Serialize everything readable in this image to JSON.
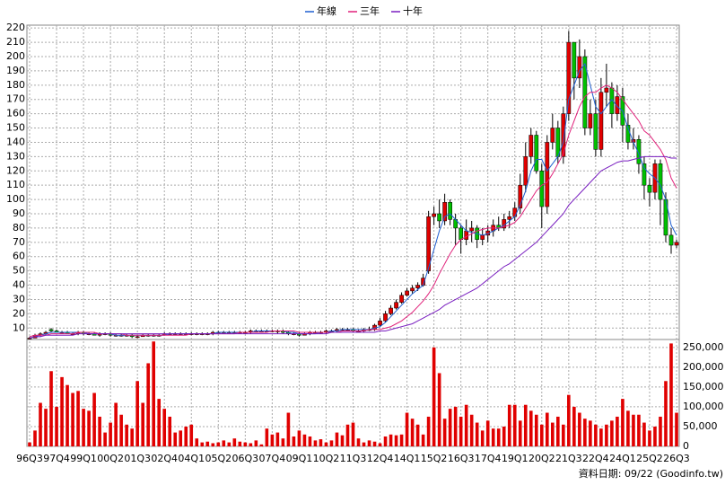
{
  "chart_data": [
    {
      "type": "candlestick",
      "categories": [
        "96Q3",
        null,
        null,
        null,
        null,
        "97Q4",
        null,
        null,
        null,
        null,
        "99Q1",
        null,
        null,
        null,
        null,
        "00Q2",
        null,
        null,
        null,
        null,
        "01Q3",
        null,
        null,
        null,
        null,
        "02Q4",
        null,
        null,
        null,
        null,
        "04Q1",
        null,
        null,
        null,
        null,
        "05Q2",
        null,
        null,
        null,
        null,
        "06Q3",
        null,
        null,
        null,
        null,
        "07Q4",
        null,
        null,
        null,
        null,
        "09Q1",
        null,
        null,
        null,
        null,
        "10Q2",
        null,
        null,
        null,
        null,
        "11Q3",
        null,
        null,
        null,
        null,
        "12Q4",
        null,
        null,
        null,
        null,
        "14Q1",
        null,
        null,
        null,
        null,
        "15Q2",
        null,
        null,
        null,
        null,
        "16Q3",
        null,
        null,
        null,
        null,
        "17Q4",
        null,
        null,
        null,
        null,
        "19Q1",
        null,
        null,
        null,
        null,
        "20Q2",
        null,
        null,
        null,
        null,
        "21Q3",
        null,
        null,
        null,
        null,
        "22Q4",
        null,
        null,
        null,
        null,
        "24Q1",
        null,
        null,
        null,
        null,
        "25Q2",
        null,
        null,
        null,
        null,
        "26Q3"
      ],
      "open": [
        3,
        3,
        5,
        6,
        9,
        8,
        7,
        7,
        6,
        6,
        7,
        6,
        6,
        5,
        6,
        6,
        5,
        5,
        5,
        5,
        4,
        4,
        5,
        5,
        5,
        5,
        6,
        6,
        6,
        6,
        6,
        6,
        6,
        6,
        6,
        7,
        7,
        7,
        7,
        7,
        7,
        7,
        8,
        8,
        8,
        8,
        8,
        8,
        7,
        6,
        6,
        5,
        6,
        7,
        7,
        7,
        8,
        8,
        9,
        9,
        9,
        8,
        8,
        9,
        9,
        12,
        15,
        20,
        24,
        28,
        33,
        36,
        38,
        40,
        50,
        88,
        90,
        85,
        98,
        86,
        80,
        72,
        78,
        80,
        72,
        75,
        78,
        82,
        80,
        86,
        88,
        94,
        110,
        130,
        145,
        120,
        95,
        140,
        150,
        130,
        160,
        210,
        185,
        200,
        150,
        160,
        135,
        175,
        178,
        160,
        172,
        152,
        140,
        142,
        125,
        110,
        105,
        125,
        100,
        75,
        68
      ],
      "high": [
        4,
        6,
        7,
        8,
        10,
        9,
        8,
        8,
        7,
        8,
        8,
        7,
        7,
        7,
        7,
        7,
        6,
        6,
        6,
        6,
        5,
        6,
        6,
        6,
        6,
        7,
        7,
        7,
        7,
        7,
        7,
        7,
        7,
        7,
        8,
        8,
        8,
        8,
        8,
        8,
        8,
        9,
        9,
        9,
        9,
        9,
        9,
        9,
        8,
        7,
        7,
        7,
        8,
        8,
        8,
        9,
        9,
        10,
        10,
        10,
        10,
        9,
        10,
        11,
        13,
        17,
        22,
        26,
        30,
        35,
        38,
        40,
        42,
        48,
        92,
        95,
        100,
        104,
        100,
        90,
        82,
        86,
        85,
        82,
        80,
        82,
        86,
        88,
        90,
        92,
        98,
        118,
        140,
        150,
        148,
        125,
        145,
        160,
        155,
        165,
        218,
        210,
        212,
        205,
        170,
        170,
        185,
        195,
        182,
        180,
        178,
        160,
        150,
        145,
        130,
        115,
        128,
        128,
        105,
        80,
        72
      ],
      "low": [
        2,
        3,
        4,
        5,
        7,
        7,
        6,
        6,
        5,
        5,
        5,
        5,
        5,
        4,
        5,
        4,
        4,
        4,
        4,
        3,
        3,
        4,
        4,
        4,
        4,
        5,
        5,
        5,
        5,
        5,
        5,
        5,
        5,
        5,
        5,
        6,
        6,
        6,
        6,
        6,
        6,
        6,
        7,
        7,
        7,
        7,
        6,
        6,
        5,
        5,
        4,
        5,
        5,
        6,
        6,
        6,
        7,
        7,
        8,
        8,
        7,
        7,
        7,
        8,
        8,
        11,
        14,
        19,
        23,
        27,
        32,
        34,
        36,
        39,
        48,
        82,
        80,
        82,
        82,
        68,
        62,
        68,
        70,
        66,
        68,
        70,
        74,
        78,
        78,
        80,
        85,
        90,
        105,
        125,
        118,
        80,
        90,
        135,
        125,
        125,
        155,
        170,
        178,
        145,
        145,
        130,
        130,
        165,
        150,
        155,
        140,
        135,
        135,
        118,
        100,
        95,
        100,
        82,
        70,
        62,
        66
      ],
      "close": [
        3,
        5,
        6,
        7,
        8,
        7,
        7,
        6,
        6,
        7,
        6,
        6,
        5,
        6,
        6,
        5,
        5,
        5,
        5,
        4,
        4,
        5,
        5,
        5,
        5,
        6,
        6,
        6,
        6,
        6,
        6,
        6,
        6,
        6,
        7,
        7,
        7,
        7,
        7,
        7,
        7,
        8,
        8,
        8,
        8,
        8,
        8,
        7,
        6,
        6,
        5,
        6,
        7,
        7,
        7,
        8,
        8,
        9,
        9,
        9,
        8,
        8,
        9,
        9,
        12,
        15,
        20,
        24,
        28,
        33,
        36,
        38,
        40,
        45,
        88,
        90,
        85,
        98,
        86,
        80,
        72,
        78,
        80,
        72,
        75,
        78,
        82,
        80,
        86,
        88,
        94,
        110,
        130,
        145,
        120,
        95,
        140,
        150,
        130,
        160,
        210,
        185,
        200,
        150,
        160,
        135,
        175,
        178,
        160,
        172,
        152,
        140,
        142,
        125,
        110,
        105,
        125,
        100,
        75,
        68,
        70
      ],
      "up_color": "#e00000",
      "down_color": "#00c000",
      "series": [
        {
          "name": "年線",
          "color": "#1f5fd0",
          "values": [
            3,
            4,
            5,
            6,
            7,
            7,
            7,
            7,
            7,
            7,
            7,
            6,
            6,
            6,
            6,
            6,
            5,
            5,
            5,
            5,
            5,
            5,
            5,
            5,
            5,
            5,
            6,
            6,
            6,
            6,
            6,
            6,
            6,
            6,
            6,
            7,
            7,
            7,
            7,
            7,
            7,
            7,
            8,
            8,
            8,
            8,
            8,
            8,
            7,
            7,
            6,
            6,
            6,
            6,
            7,
            7,
            8,
            8,
            9,
            9,
            9,
            9,
            9,
            9,
            10,
            11,
            14,
            18,
            22,
            26,
            30,
            34,
            37,
            40,
            52,
            65,
            78,
            88,
            90,
            86,
            82,
            78,
            77,
            76,
            75,
            76,
            78,
            80,
            82,
            85,
            88,
            96,
            106,
            120,
            128,
            128,
            120,
            125,
            130,
            140,
            170,
            180,
            190,
            195,
            180,
            165,
            160,
            165,
            170,
            165,
            162,
            150,
            140,
            132,
            122,
            118,
            115,
            110,
            100,
            82,
            75
          ]
        },
        {
          "name": "三年",
          "color": "#e0207a",
          "values": [
            4,
            5,
            5,
            5,
            6,
            6,
            6,
            6,
            6,
            7,
            7,
            7,
            7,
            6,
            6,
            6,
            6,
            6,
            5,
            5,
            5,
            5,
            5,
            5,
            5,
            5,
            5,
            5,
            5,
            5,
            6,
            6,
            6,
            6,
            6,
            6,
            6,
            6,
            6,
            7,
            7,
            7,
            7,
            7,
            7,
            8,
            8,
            8,
            8,
            8,
            7,
            7,
            7,
            7,
            7,
            7,
            7,
            7,
            8,
            8,
            8,
            8,
            8,
            9,
            9,
            9,
            10,
            11,
            13,
            15,
            18,
            21,
            25,
            29,
            34,
            40,
            48,
            55,
            62,
            68,
            72,
            74,
            76,
            78,
            79,
            80,
            80,
            80,
            81,
            82,
            84,
            88,
            94,
            100,
            106,
            110,
            112,
            118,
            125,
            132,
            145,
            155,
            165,
            172,
            175,
            175,
            178,
            180,
            178,
            175,
            170,
            165,
            160,
            155,
            148,
            145,
            140,
            135,
            128,
            115,
            108
          ]
        },
        {
          "name": "十年",
          "color": "#7a1fc0",
          "values": [
            3,
            4,
            4,
            5,
            5,
            5,
            5,
            5,
            5,
            6,
            6,
            6,
            6,
            6,
            6,
            6,
            6,
            6,
            6,
            6,
            6,
            6,
            6,
            6,
            6,
            6,
            6,
            6,
            6,
            6,
            6,
            6,
            6,
            6,
            6,
            6,
            6,
            6,
            6,
            6,
            6,
            6,
            6,
            6,
            6,
            6,
            6,
            6,
            6,
            6,
            6,
            6,
            6,
            6,
            6,
            6,
            7,
            7,
            7,
            7,
            7,
            7,
            7,
            7,
            7,
            8,
            8,
            9,
            10,
            11,
            12,
            13,
            15,
            17,
            19,
            21,
            23,
            26,
            28,
            30,
            32,
            34,
            36,
            38,
            41,
            44,
            47,
            50,
            53,
            55,
            58,
            61,
            64,
            67,
            70,
            74,
            78,
            82,
            86,
            90,
            96,
            100,
            104,
            108,
            112,
            116,
            120,
            122,
            124,
            126,
            127,
            127,
            128,
            129,
            130,
            130,
            130,
            130,
            130,
            129,
            129
          ]
        }
      ],
      "ylim": [
        2,
        222
      ],
      "yticks": [
        10,
        20,
        30,
        40,
        50,
        60,
        70,
        80,
        90,
        100,
        110,
        120,
        130,
        140,
        150,
        160,
        170,
        180,
        190,
        200,
        210,
        220
      ],
      "grid": true,
      "legend": "top"
    },
    {
      "type": "bar",
      "values": [
        10000,
        40000,
        110000,
        95000,
        190000,
        100000,
        175000,
        155000,
        135000,
        140000,
        95000,
        90000,
        135000,
        75000,
        35000,
        60000,
        110000,
        80000,
        55000,
        45000,
        165000,
        110000,
        210000,
        265000,
        120000,
        95000,
        75000,
        35000,
        40000,
        50000,
        55000,
        20000,
        10000,
        12000,
        8000,
        10000,
        15000,
        10000,
        20000,
        12000,
        10000,
        8000,
        15000,
        5000,
        45000,
        30000,
        35000,
        20000,
        85000,
        25000,
        40000,
        30000,
        25000,
        15000,
        18000,
        10000,
        15000,
        35000,
        28000,
        55000,
        60000,
        20000,
        10000,
        15000,
        12000,
        8000,
        25000,
        30000,
        28000,
        30000,
        85000,
        70000,
        55000,
        30000,
        75000,
        250000,
        185000,
        70000,
        95000,
        100000,
        75000,
        105000,
        80000,
        60000,
        40000,
        65000,
        45000,
        45000,
        50000,
        105000,
        105000,
        65000,
        105000,
        90000,
        80000,
        55000,
        85000,
        60000,
        75000,
        55000,
        130000,
        100000,
        85000,
        70000,
        65000,
        55000,
        45000,
        55000,
        65000,
        75000,
        120000,
        90000,
        80000,
        80000,
        60000,
        40000,
        50000,
        75000,
        165000,
        260000,
        85000
      ],
      "color": "#e00000",
      "ylim": [
        0,
        270000
      ],
      "yticks": [
        {
          "value": 0,
          "label": "0"
        },
        {
          "value": 50000,
          "label": "50,000"
        },
        {
          "value": 100000,
          "label": "100,000"
        },
        {
          "value": 150000,
          "label": "150,000"
        },
        {
          "value": 200000,
          "label": "200,000"
        },
        {
          "value": 250000,
          "label": "250,000"
        }
      ],
      "grid": true
    }
  ],
  "footer": "資料日期: 09/22 (Goodinfo.tw)"
}
